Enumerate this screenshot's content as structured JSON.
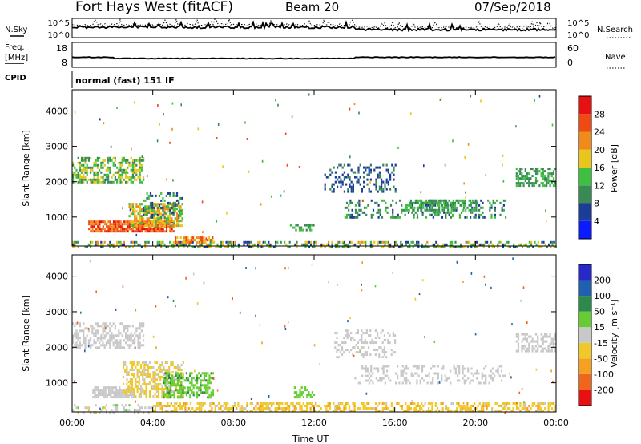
{
  "header": {
    "station": "Fort Hays West (fitACF)",
    "beam": "Beam 20",
    "date": "07/Sep/2018"
  },
  "strip": {
    "nsky_label": "N.Sky",
    "nsearch_label": "N.Search",
    "freq_label_1": "Freq.",
    "freq_label_2": "[MHz]",
    "nave_label": "Nave",
    "cpid_label": "CPID",
    "cpid_text": "normal (fast) 151 IF",
    "noise_ticks_left": [
      "10^5",
      "10^0"
    ],
    "noise_ticks_right": [
      "10^5",
      "10^0"
    ],
    "freq_ticks": [
      "18",
      "8"
    ],
    "nave_ticks": [
      "60",
      "0"
    ]
  },
  "colorbars": {
    "power": {
      "label": "Power [dB]",
      "ticks": [
        "4",
        "8",
        "12",
        "16",
        "20",
        "24",
        "28"
      ],
      "colors": [
        "#0a1bff",
        "#1c3c99",
        "#3a8a55",
        "#3fbf3f",
        "#e8c61c",
        "#f08a1a",
        "#ef4a14",
        "#e81010"
      ]
    },
    "velocity": {
      "label": "Velocity [m s⁻¹]",
      "ticks": [
        "-200",
        "-100",
        "-50",
        "-15",
        "15",
        "50",
        "100",
        "200"
      ],
      "colors": [
        "#e81010",
        "#f0641c",
        "#f5a01e",
        "#f0c828",
        "#c8c8c8",
        "#66cc33",
        "#2e8a4a",
        "#2060b0",
        "#2828c8"
      ]
    }
  },
  "axes": {
    "ylabel": "Slant Range [km]",
    "xlabel": "Time UT",
    "x_ticks": [
      "00:00",
      "04:00",
      "08:00",
      "12:00",
      "16:00",
      "20:00",
      "00:00"
    ],
    "y_ticks": [
      "1000",
      "2000",
      "3000",
      "4000"
    ]
  },
  "chart_data": [
    {
      "type": "heatmap",
      "name": "power",
      "xlabel": "Time UT",
      "ylabel": "Slant Range [km]",
      "xlim": [
        0,
        24
      ],
      "ylim": [
        180,
        4600
      ],
      "x_unit": "hours UT",
      "colorbar_label": "Power [dB]",
      "regions": [
        {
          "t": [
            0.0,
            3.5
          ],
          "r": [
            2000,
            2700
          ],
          "level": [
            8,
            20
          ]
        },
        {
          "t": [
            0.8,
            5.0
          ],
          "r": [
            600,
            900
          ],
          "level": [
            20,
            30
          ]
        },
        {
          "t": [
            2.8,
            5.5
          ],
          "r": [
            750,
            1400
          ],
          "level": [
            12,
            24
          ]
        },
        {
          "t": [
            3.5,
            5.5
          ],
          "r": [
            1000,
            1700
          ],
          "level": [
            4,
            14
          ]
        },
        {
          "t": [
            0.0,
            24.0
          ],
          "r": [
            180,
            320
          ],
          "level": [
            4,
            22
          ]
        },
        {
          "t": [
            5.0,
            7.0
          ],
          "r": [
            250,
            450
          ],
          "level": [
            16,
            28
          ]
        },
        {
          "t": [
            10.8,
            12.0
          ],
          "r": [
            600,
            800
          ],
          "level": [
            8,
            16
          ]
        },
        {
          "t": [
            12.5,
            16.0
          ],
          "r": [
            1700,
            2500
          ],
          "level": [
            4,
            10
          ]
        },
        {
          "t": [
            13.5,
            21.5
          ],
          "r": [
            1000,
            1500
          ],
          "level": [
            6,
            14
          ]
        },
        {
          "t": [
            16.5,
            20.0
          ],
          "r": [
            1200,
            1500
          ],
          "level": [
            8,
            16
          ]
        },
        {
          "t": [
            22.0,
            24.0
          ],
          "r": [
            1900,
            2400
          ],
          "level": [
            8,
            16
          ]
        }
      ]
    },
    {
      "type": "heatmap",
      "name": "velocity",
      "xlabel": "Time UT",
      "ylabel": "Slant Range [km]",
      "xlim": [
        0,
        24
      ],
      "ylim": [
        180,
        4600
      ],
      "x_unit": "hours UT",
      "colorbar_label": "Velocity [m s⁻¹]",
      "regions": [
        {
          "t": [
            0.0,
            3.5
          ],
          "r": [
            2000,
            2700
          ],
          "level": [
            -15,
            15
          ]
        },
        {
          "t": [
            1.0,
            3.0
          ],
          "r": [
            600,
            900
          ],
          "level": [
            -15,
            15
          ]
        },
        {
          "t": [
            2.5,
            5.5
          ],
          "r": [
            600,
            1600
          ],
          "level": [
            -50,
            0
          ]
        },
        {
          "t": [
            4.5,
            7.0
          ],
          "r": [
            600,
            1300
          ],
          "level": [
            15,
            60
          ]
        },
        {
          "t": [
            4.0,
            24.0
          ],
          "r": [
            180,
            450
          ],
          "level": [
            -60,
            -10
          ]
        },
        {
          "t": [
            0.0,
            4.0
          ],
          "r": [
            180,
            400
          ],
          "level": [
            -20,
            20
          ]
        },
        {
          "t": [
            11.0,
            12.0
          ],
          "r": [
            600,
            900
          ],
          "level": [
            15,
            50
          ]
        },
        {
          "t": [
            13.0,
            16.0
          ],
          "r": [
            1700,
            2500
          ],
          "level": [
            -15,
            15
          ]
        },
        {
          "t": [
            14.0,
            21.5
          ],
          "r": [
            1000,
            1500
          ],
          "level": [
            -15,
            15
          ]
        },
        {
          "t": [
            22.0,
            24.0
          ],
          "r": [
            1900,
            2400
          ],
          "level": [
            -15,
            15
          ]
        }
      ]
    }
  ]
}
